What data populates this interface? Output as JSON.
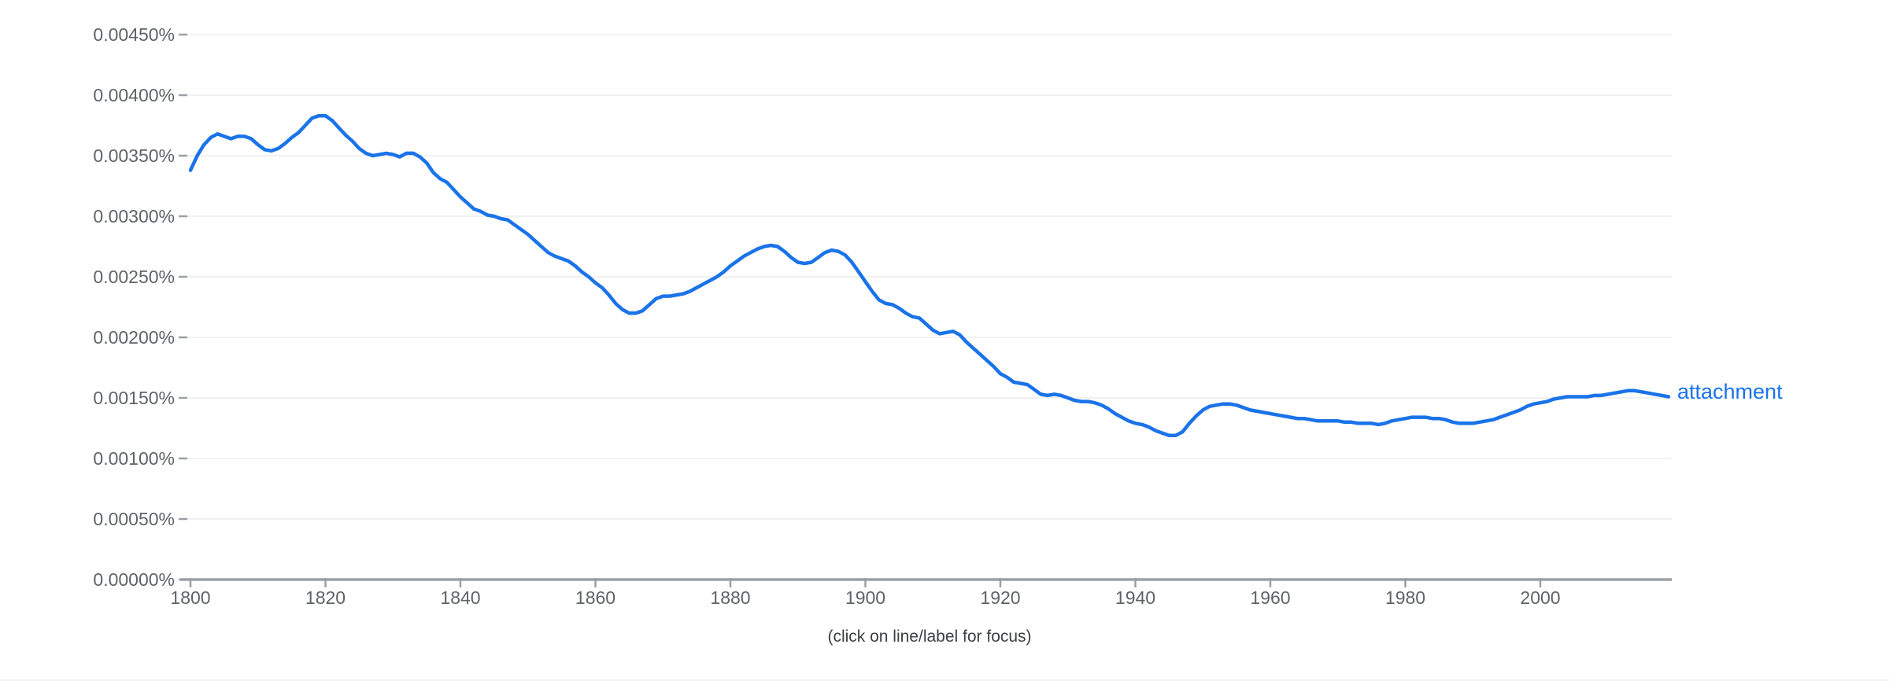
{
  "chart": {
    "hint": "(click on line/label for focus)",
    "series_label": "attachment",
    "colors": {
      "line": "#1a73e8",
      "series_label_text": "#1a73e8",
      "axis_line": "#9aa0a6",
      "tick_mark": "#9aa0a6",
      "grid_line": "#f1f1f1",
      "tick_label_text": "#5f6368",
      "hint_text": "#3c4043",
      "background": "#ffffff"
    }
  },
  "chart_data": {
    "type": "line",
    "title": "",
    "xlabel": "",
    "ylabel": "",
    "unit": "%",
    "legend_position": "right-of-line-end",
    "grid": "horizontal-only",
    "xlim": [
      1800,
      2019
    ],
    "ylim": [
      0,
      0.0045
    ],
    "x_ticks": [
      1800,
      1820,
      1840,
      1860,
      1880,
      1900,
      1920,
      1940,
      1960,
      1980,
      2000
    ],
    "y_tick_values": [
      0,
      0.0005,
      0.001,
      0.0015,
      0.002,
      0.0025,
      0.003,
      0.0035,
      0.004,
      0.0045
    ],
    "y_tick_labels": [
      "0.00000%",
      "0.00050%",
      "0.00100%",
      "0.00150%",
      "0.00200%",
      "0.00250%",
      "0.00300%",
      "0.00350%",
      "0.00400%",
      "0.00450%"
    ],
    "series": [
      {
        "name": "attachment",
        "x_start": 1800,
        "x_step": 1,
        "x_end": 2019,
        "values": [
          0.00338,
          0.0035,
          0.00359,
          0.00365,
          0.00368,
          0.00366,
          0.00364,
          0.00366,
          0.00366,
          0.00364,
          0.00359,
          0.00355,
          0.00354,
          0.00356,
          0.0036,
          0.00365,
          0.00369,
          0.00375,
          0.00381,
          0.00383,
          0.00383,
          0.00379,
          0.00373,
          0.00367,
          0.00362,
          0.00356,
          0.00352,
          0.0035,
          0.00351,
          0.00352,
          0.00351,
          0.00349,
          0.00352,
          0.00352,
          0.00349,
          0.00344,
          0.00336,
          0.00331,
          0.00328,
          0.00322,
          0.00316,
          0.00311,
          0.00306,
          0.00304,
          0.00301,
          0.003,
          0.00298,
          0.00297,
          0.00293,
          0.00289,
          0.00285,
          0.0028,
          0.00275,
          0.0027,
          0.00267,
          0.00265,
          0.00263,
          0.00259,
          0.00254,
          0.0025,
          0.00245,
          0.00241,
          0.00235,
          0.00228,
          0.00223,
          0.0022,
          0.0022,
          0.00222,
          0.00227,
          0.00232,
          0.00234,
          0.00234,
          0.00235,
          0.00236,
          0.00238,
          0.00241,
          0.00244,
          0.00247,
          0.0025,
          0.00254,
          0.00259,
          0.00263,
          0.00267,
          0.0027,
          0.00273,
          0.00275,
          0.00276,
          0.00275,
          0.00271,
          0.00266,
          0.00262,
          0.00261,
          0.00262,
          0.00266,
          0.0027,
          0.00272,
          0.00271,
          0.00268,
          0.00262,
          0.00254,
          0.00246,
          0.00238,
          0.00231,
          0.00228,
          0.00227,
          0.00224,
          0.0022,
          0.00217,
          0.00216,
          0.00211,
          0.00206,
          0.00203,
          0.00204,
          0.00205,
          0.00202,
          0.00196,
          0.00191,
          0.00186,
          0.00181,
          0.00176,
          0.0017,
          0.00167,
          0.00163,
          0.00162,
          0.00161,
          0.00157,
          0.00153,
          0.00152,
          0.00153,
          0.00152,
          0.0015,
          0.00148,
          0.00147,
          0.00147,
          0.00146,
          0.00144,
          0.00141,
          0.00137,
          0.00134,
          0.00131,
          0.00129,
          0.00128,
          0.00126,
          0.00123,
          0.00121,
          0.00119,
          0.00119,
          0.00122,
          0.00129,
          0.00135,
          0.0014,
          0.00143,
          0.00144,
          0.00145,
          0.00145,
          0.00144,
          0.00142,
          0.0014,
          0.00139,
          0.00138,
          0.00137,
          0.00136,
          0.00135,
          0.00134,
          0.00133,
          0.00133,
          0.00132,
          0.00131,
          0.00131,
          0.00131,
          0.00131,
          0.0013,
          0.0013,
          0.00129,
          0.00129,
          0.00129,
          0.00128,
          0.00129,
          0.00131,
          0.00132,
          0.00133,
          0.00134,
          0.00134,
          0.00134,
          0.00133,
          0.00133,
          0.00132,
          0.0013,
          0.00129,
          0.00129,
          0.00129,
          0.0013,
          0.00131,
          0.00132,
          0.00134,
          0.00136,
          0.00138,
          0.0014,
          0.00143,
          0.00145,
          0.00146,
          0.00147,
          0.00149,
          0.0015,
          0.00151,
          0.00151,
          0.00151,
          0.00151,
          0.00152,
          0.00152,
          0.00153,
          0.00154,
          0.00155,
          0.00156,
          0.00156,
          0.00155,
          0.00154,
          0.00153,
          0.00152,
          0.00151
        ]
      }
    ]
  }
}
